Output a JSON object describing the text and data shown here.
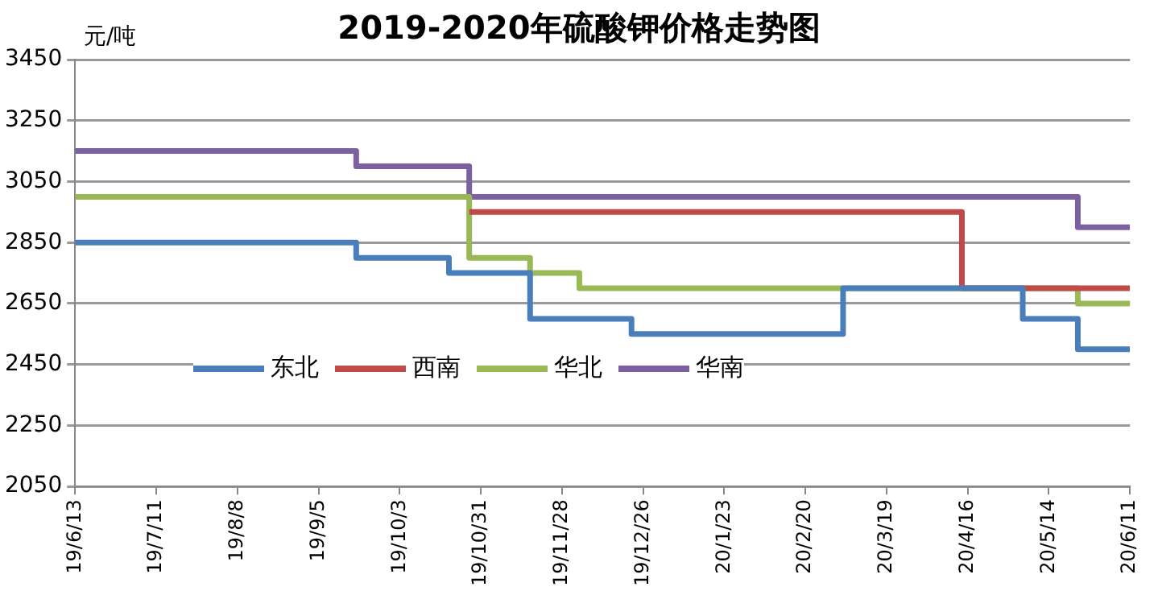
{
  "chart_data": {
    "type": "step",
    "title": "2019-2020年硫酸钾价格走势图",
    "ylabel": "元/吨",
    "series": [
      {
        "name": "东北",
        "color": "#4a7ebb",
        "x": [
          "2019-06-13",
          "2019-09-18",
          "2019-10-20",
          "2019-11-17",
          "2019-12-22",
          "2020-03-04",
          "2020-05-05",
          "2020-05-24",
          "2020-06-11"
        ],
        "values": [
          2850,
          2800,
          2750,
          2600,
          2550,
          2700,
          2600,
          2500,
          2500
        ]
      },
      {
        "name": "西南",
        "color": "#be4b48",
        "x": [
          "2019-10-27",
          "2020-04-14",
          "2020-06-11"
        ],
        "values": [
          2950,
          2700,
          2700
        ]
      },
      {
        "name": "华北",
        "color": "#98b954",
        "x": [
          "2019-06-13",
          "2019-10-27",
          "2019-11-17",
          "2019-12-04",
          "2020-05-24",
          "2020-06-11"
        ],
        "values": [
          3000,
          2800,
          2750,
          2700,
          2650,
          2650
        ]
      },
      {
        "name": "华南",
        "color": "#7d60a0",
        "x": [
          "2019-06-13",
          "2019-09-18",
          "2019-10-27",
          "2020-05-24",
          "2020-06-11"
        ],
        "values": [
          3150,
          3100,
          3000,
          2900,
          2900
        ]
      }
    ],
    "xlim": [
      "2019-06-13",
      "2020-06-11"
    ],
    "xticks": [
      {
        "value": "2019-06-13",
        "label": "19/6/13"
      },
      {
        "value": "2019-07-11",
        "label": "19/7/11"
      },
      {
        "value": "2019-08-08",
        "label": "19/8/8"
      },
      {
        "value": "2019-09-05",
        "label": "19/9/5"
      },
      {
        "value": "2019-10-03",
        "label": "19/10/3"
      },
      {
        "value": "2019-10-31",
        "label": "19/10/31"
      },
      {
        "value": "2019-11-28",
        "label": "19/11/28"
      },
      {
        "value": "2019-12-26",
        "label": "19/12/26"
      },
      {
        "value": "2020-01-23",
        "label": "20/1/23"
      },
      {
        "value": "2020-02-20",
        "label": "20/2/20"
      },
      {
        "value": "2020-03-19",
        "label": "20/3/19"
      },
      {
        "value": "2020-04-16",
        "label": "20/4/16"
      },
      {
        "value": "2020-05-14",
        "label": "20/5/14"
      },
      {
        "value": "2020-06-11",
        "label": "20/6/11"
      }
    ],
    "ylim": [
      2050,
      3450
    ],
    "yticks": [
      2050,
      2250,
      2450,
      2650,
      2850,
      3050,
      3250,
      3450
    ],
    "grid": "y",
    "legend": "bottom left",
    "line_style": "solid",
    "marker": "none"
  }
}
